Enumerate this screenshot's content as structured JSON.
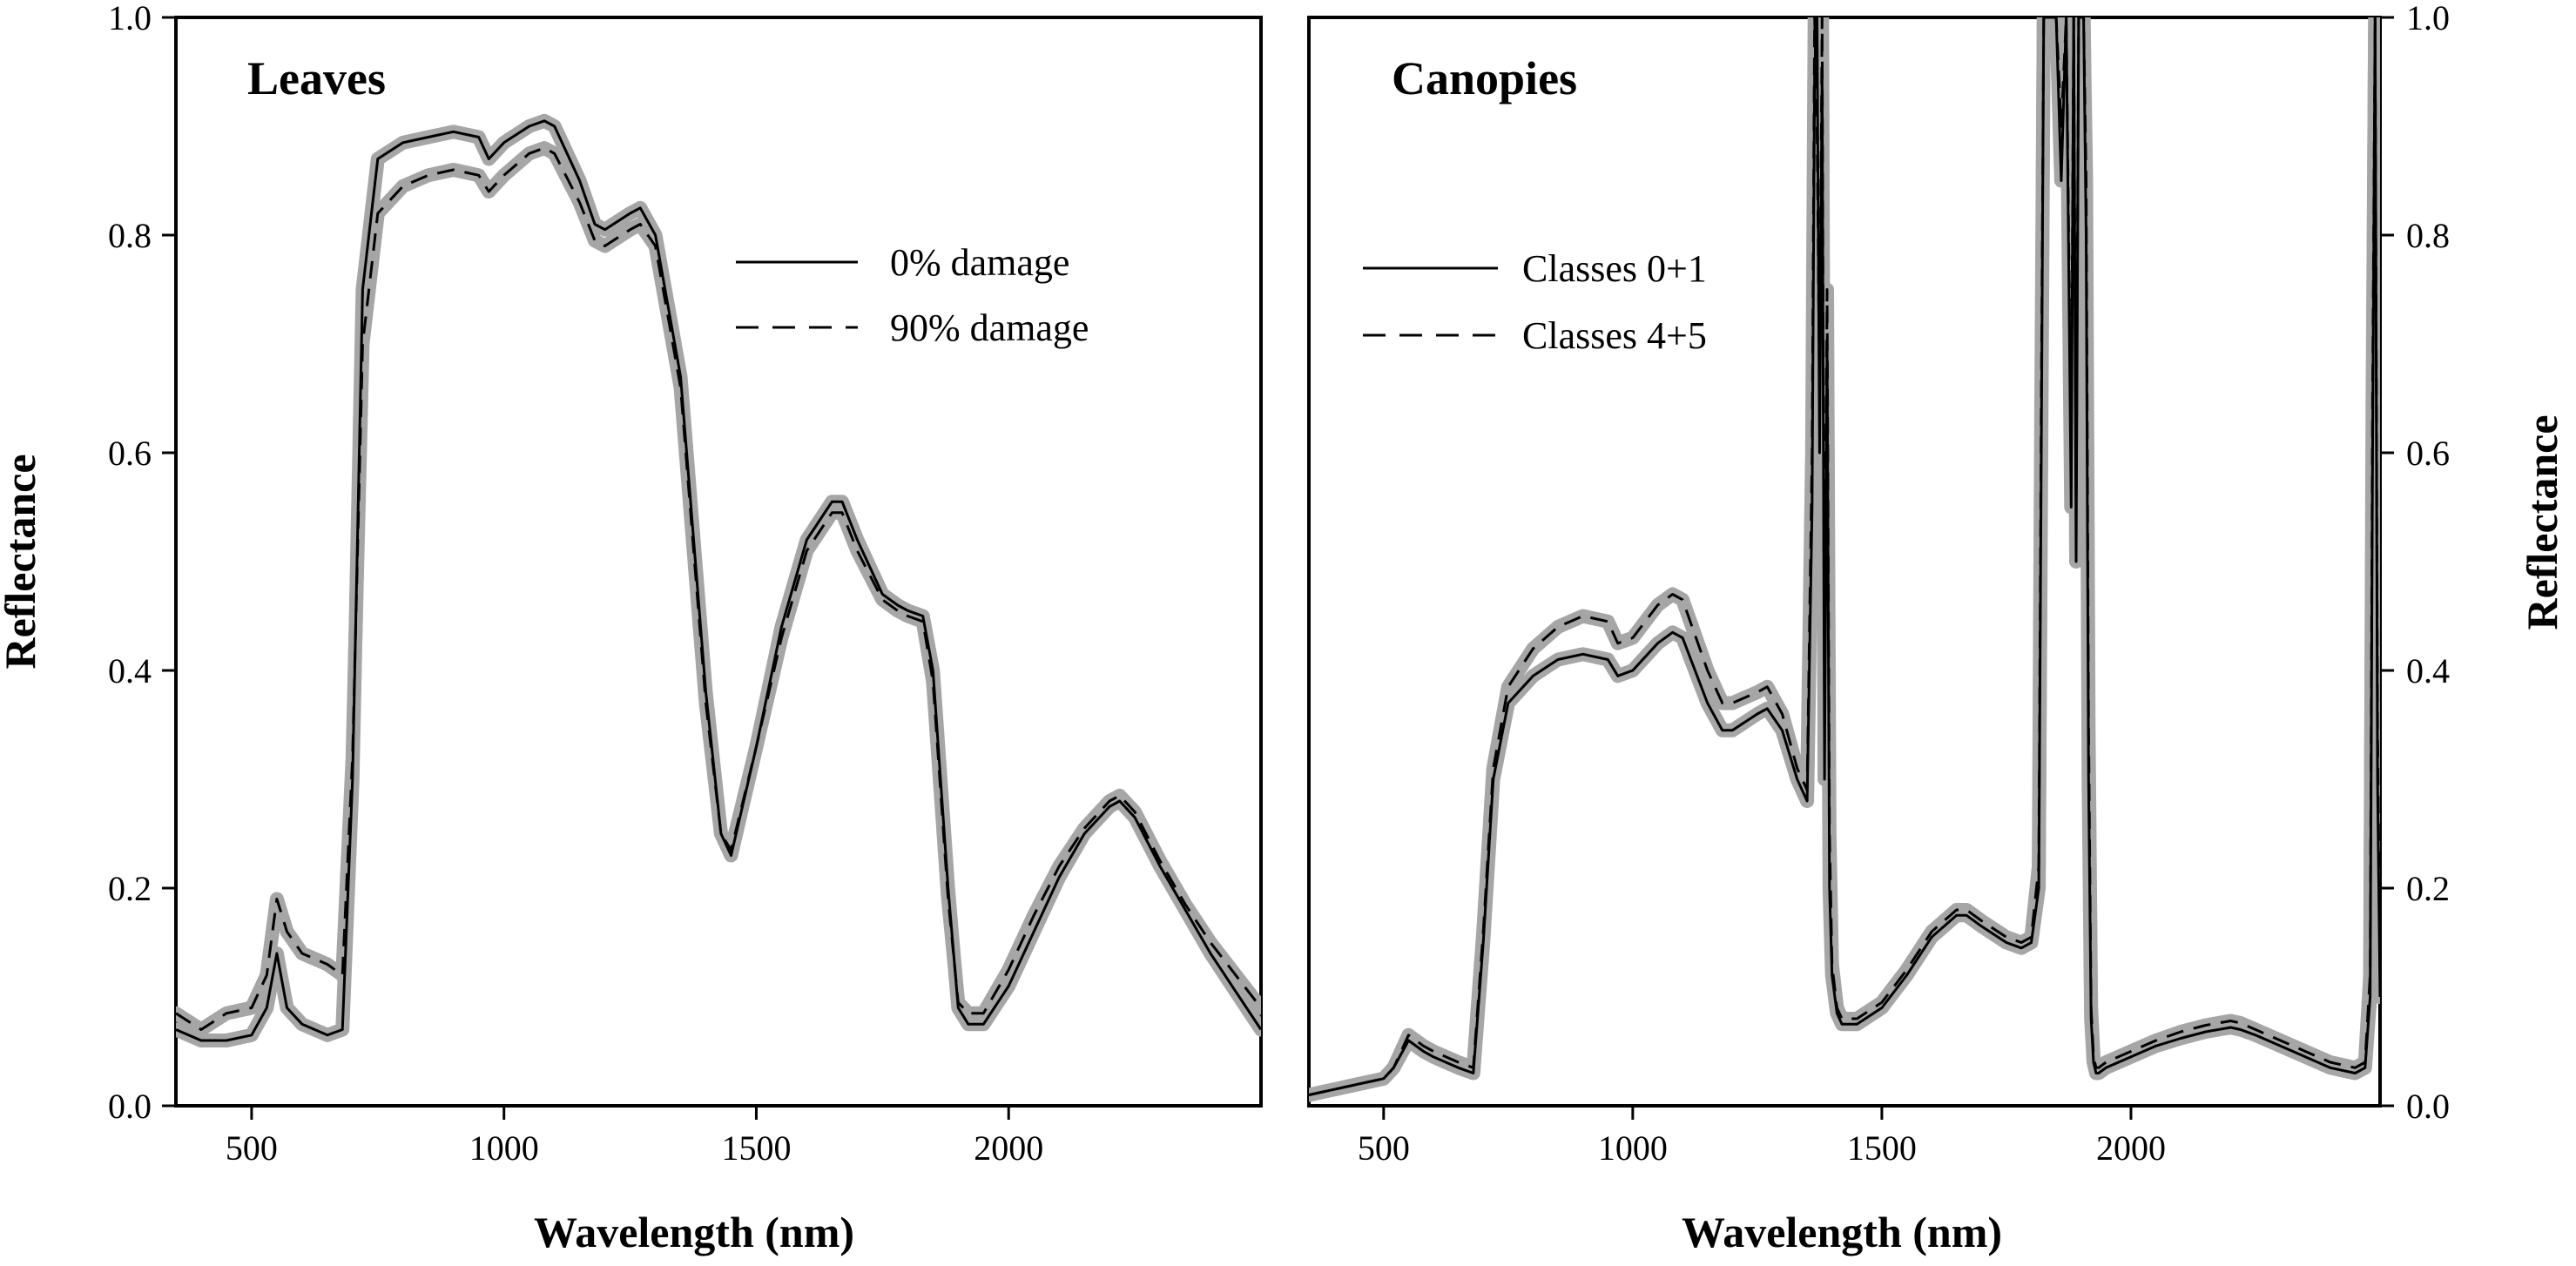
{
  "chart_data": [
    {
      "type": "line",
      "title": "Leaves",
      "xlabel": "Wavelength (nm)",
      "ylabel": "Reflectance",
      "xlim": [
        350,
        2500
      ],
      "ylim": [
        0.0,
        1.0
      ],
      "xticks": [
        500,
        1000,
        1500,
        2000
      ],
      "xtick_labels": [
        "500",
        "1000",
        "1500",
        "2000"
      ],
      "yticks": [
        0.0,
        0.2,
        0.4,
        0.6,
        0.8,
        1.0
      ],
      "ytick_labels": [
        "0.0",
        "0.2",
        "0.4",
        "0.6",
        "0.8",
        "1.0"
      ],
      "legend_position": "upper-right",
      "grid": false,
      "band_color": "#a6a6a6",
      "series": [
        {
          "name": "0% damage",
          "style": "solid",
          "x": [
            350,
            400,
            450,
            500,
            530,
            550,
            570,
            600,
            650,
            680,
            700,
            720,
            750,
            800,
            850,
            900,
            950,
            970,
            1000,
            1050,
            1080,
            1100,
            1150,
            1180,
            1200,
            1250,
            1270,
            1300,
            1350,
            1400,
            1430,
            1450,
            1500,
            1550,
            1600,
            1650,
            1670,
            1700,
            1750,
            1780,
            1800,
            1830,
            1850,
            1880,
            1900,
            1920,
            1950,
            2000,
            2050,
            2100,
            2150,
            2200,
            2220,
            2250,
            2300,
            2350,
            2400,
            2450,
            2500
          ],
          "y": [
            0.07,
            0.06,
            0.06,
            0.065,
            0.09,
            0.14,
            0.09,
            0.075,
            0.065,
            0.07,
            0.3,
            0.75,
            0.87,
            0.885,
            0.89,
            0.895,
            0.89,
            0.87,
            0.885,
            0.9,
            0.905,
            0.9,
            0.85,
            0.81,
            0.805,
            0.82,
            0.825,
            0.8,
            0.67,
            0.38,
            0.25,
            0.23,
            0.33,
            0.44,
            0.52,
            0.555,
            0.555,
            0.52,
            0.47,
            0.46,
            0.455,
            0.45,
            0.4,
            0.2,
            0.09,
            0.075,
            0.075,
            0.11,
            0.16,
            0.21,
            0.25,
            0.275,
            0.28,
            0.265,
            0.22,
            0.18,
            0.14,
            0.105,
            0.07
          ]
        },
        {
          "name": "90% damage",
          "style": "dashed",
          "x": [
            350,
            400,
            450,
            500,
            530,
            550,
            570,
            600,
            650,
            680,
            700,
            720,
            750,
            800,
            850,
            900,
            950,
            970,
            1000,
            1050,
            1080,
            1100,
            1150,
            1180,
            1200,
            1250,
            1270,
            1300,
            1350,
            1400,
            1430,
            1450,
            1500,
            1550,
            1600,
            1650,
            1670,
            1700,
            1750,
            1780,
            1800,
            1830,
            1850,
            1880,
            1900,
            1920,
            1950,
            2000,
            2050,
            2100,
            2150,
            2200,
            2220,
            2250,
            2300,
            2350,
            2400,
            2450,
            2500
          ],
          "y": [
            0.085,
            0.07,
            0.085,
            0.09,
            0.12,
            0.19,
            0.16,
            0.14,
            0.13,
            0.12,
            0.32,
            0.7,
            0.82,
            0.845,
            0.855,
            0.86,
            0.855,
            0.84,
            0.855,
            0.875,
            0.88,
            0.875,
            0.83,
            0.795,
            0.79,
            0.805,
            0.81,
            0.79,
            0.66,
            0.37,
            0.25,
            0.235,
            0.33,
            0.43,
            0.51,
            0.545,
            0.545,
            0.51,
            0.465,
            0.455,
            0.45,
            0.445,
            0.39,
            0.19,
            0.095,
            0.085,
            0.085,
            0.125,
            0.175,
            0.22,
            0.255,
            0.28,
            0.285,
            0.27,
            0.225,
            0.185,
            0.15,
            0.12,
            0.09
          ]
        }
      ]
    },
    {
      "type": "line",
      "title": "Canopies",
      "xlabel": "Wavelength (nm)",
      "ylabel": "Reflectance",
      "xlim": [
        350,
        2500
      ],
      "ylim": [
        0.0,
        1.0
      ],
      "xticks": [
        500,
        1000,
        1500,
        2000
      ],
      "xtick_labels": [
        "500",
        "1000",
        "1500",
        "2000"
      ],
      "yticks": [
        0.0,
        0.2,
        0.4,
        0.6,
        0.8,
        1.0
      ],
      "ytick_labels": [
        "0.0",
        "0.2",
        "0.4",
        "0.6",
        "0.8",
        "1.0"
      ],
      "y_axis_side": "right",
      "legend_position": "upper-left",
      "grid": false,
      "band_color": "#a6a6a6",
      "series": [
        {
          "name": "Classes 0+1",
          "style": "solid",
          "x": [
            350,
            400,
            450,
            500,
            520,
            550,
            580,
            600,
            650,
            680,
            700,
            720,
            750,
            800,
            850,
            900,
            950,
            970,
            1000,
            1050,
            1080,
            1100,
            1150,
            1180,
            1200,
            1250,
            1270,
            1300,
            1330,
            1350,
            1360,
            1365,
            1370,
            1375,
            1380,
            1385,
            1390,
            1395,
            1400,
            1410,
            1420,
            1450,
            1500,
            1550,
            1600,
            1650,
            1670,
            1700,
            1750,
            1780,
            1800,
            1815,
            1820,
            1825,
            1830,
            1840,
            1850,
            1860,
            1870,
            1880,
            1885,
            1890,
            1895,
            1900,
            1905,
            1910,
            1915,
            1920,
            1925,
            1930,
            1935,
            1950,
            2000,
            2050,
            2100,
            2150,
            2200,
            2220,
            2250,
            2300,
            2350,
            2400,
            2450,
            2470,
            2480,
            2485,
            2490,
            2495,
            2500
          ],
          "y": [
            0.01,
            0.015,
            0.02,
            0.025,
            0.035,
            0.06,
            0.05,
            0.045,
            0.035,
            0.03,
            0.15,
            0.3,
            0.37,
            0.395,
            0.41,
            0.415,
            0.41,
            0.395,
            0.4,
            0.425,
            0.435,
            0.43,
            0.37,
            0.345,
            0.345,
            0.36,
            0.365,
            0.345,
            0.3,
            0.28,
            0.55,
            0.95,
            1.0,
            0.6,
            0.95,
            0.3,
            0.7,
            0.2,
            0.12,
            0.085,
            0.075,
            0.075,
            0.09,
            0.12,
            0.155,
            0.175,
            0.175,
            0.165,
            0.15,
            0.145,
            0.15,
            0.2,
            0.6,
            1.0,
            1.0,
            1.0,
            1.0,
            0.85,
            1.0,
            0.55,
            1.0,
            0.5,
            1.0,
            1.0,
            1.0,
            0.8,
            0.3,
            0.08,
            0.04,
            0.03,
            0.03,
            0.035,
            0.045,
            0.055,
            0.062,
            0.068,
            0.072,
            0.07,
            0.065,
            0.055,
            0.045,
            0.035,
            0.03,
            0.035,
            0.1,
            0.6,
            1.0,
            0.3,
            0.1
          ]
        },
        {
          "name": "Classes 4+5",
          "style": "dashed",
          "x": [
            350,
            400,
            450,
            500,
            520,
            550,
            580,
            600,
            650,
            680,
            700,
            720,
            750,
            800,
            850,
            900,
            950,
            970,
            1000,
            1050,
            1080,
            1100,
            1150,
            1180,
            1200,
            1250,
            1270,
            1300,
            1330,
            1350,
            1360,
            1365,
            1370,
            1375,
            1380,
            1385,
            1390,
            1395,
            1400,
            1410,
            1420,
            1450,
            1500,
            1550,
            1600,
            1650,
            1670,
            1700,
            1750,
            1780,
            1800,
            1815,
            1820,
            1825,
            1830,
            1840,
            1850,
            1860,
            1870,
            1880,
            1885,
            1890,
            1895,
            1900,
            1905,
            1910,
            1915,
            1920,
            1925,
            1930,
            1935,
            1950,
            2000,
            2050,
            2100,
            2150,
            2200,
            2220,
            2250,
            2300,
            2350,
            2400,
            2450,
            2470,
            2480,
            2485,
            2490,
            2495,
            2500
          ],
          "y": [
            0.01,
            0.015,
            0.02,
            0.025,
            0.035,
            0.065,
            0.055,
            0.05,
            0.04,
            0.035,
            0.16,
            0.31,
            0.385,
            0.42,
            0.44,
            0.45,
            0.445,
            0.425,
            0.43,
            0.46,
            0.47,
            0.465,
            0.4,
            0.37,
            0.37,
            0.38,
            0.385,
            0.36,
            0.31,
            0.29,
            0.6,
            1.0,
            0.9,
            0.65,
            1.0,
            0.35,
            0.75,
            0.25,
            0.13,
            0.09,
            0.08,
            0.08,
            0.095,
            0.125,
            0.16,
            0.18,
            0.18,
            0.17,
            0.155,
            0.15,
            0.155,
            0.22,
            0.65,
            1.0,
            1.0,
            1.0,
            1.0,
            0.9,
            1.0,
            0.6,
            1.0,
            0.55,
            1.0,
            1.0,
            1.0,
            0.85,
            0.35,
            0.09,
            0.045,
            0.035,
            0.035,
            0.04,
            0.05,
            0.06,
            0.068,
            0.074,
            0.078,
            0.076,
            0.07,
            0.06,
            0.05,
            0.04,
            0.035,
            0.04,
            0.12,
            0.65,
            1.0,
            0.35,
            0.12
          ]
        }
      ]
    }
  ]
}
